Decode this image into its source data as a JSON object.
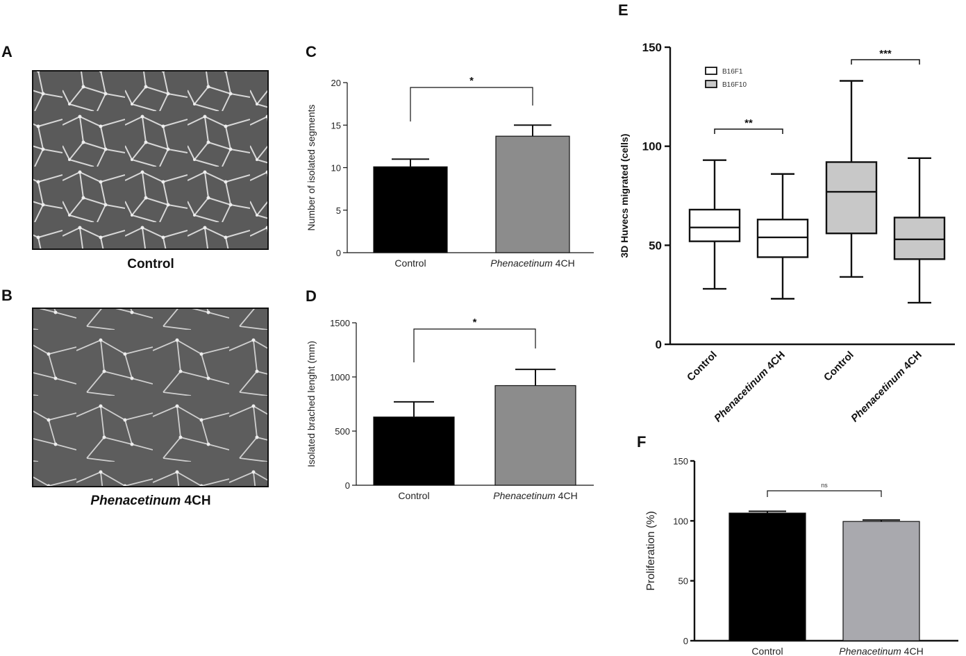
{
  "panels": {
    "A": {
      "letter": "A",
      "caption": "Control"
    },
    "B": {
      "letter": "B",
      "caption_italic": "Phenacetinum",
      "caption_rest": " 4CH"
    }
  },
  "colors": {
    "control": "#000000",
    "treat_c": "#8c8c8c",
    "treat_f": "#a9a9ae",
    "box_b16f1": "#ffffff",
    "box_b16f10": "#c8c8c8"
  },
  "chart_data": [
    {
      "panel": "C",
      "type": "bar",
      "title": "",
      "ylabel": "Number of isolated segments",
      "ylim": [
        0,
        20
      ],
      "yticks": [
        0,
        5,
        10,
        15,
        20
      ],
      "categories": [
        {
          "italic": "",
          "rest": "Control"
        },
        {
          "italic": "Phenacetinum",
          "rest": " 4CH"
        }
      ],
      "values": [
        10.1,
        13.7
      ],
      "errors": [
        0.9,
        1.3
      ],
      "significance": "*"
    },
    {
      "panel": "D",
      "type": "bar",
      "title": "",
      "ylabel": "Isolated brached lenght (mm)",
      "ylim": [
        0,
        1500
      ],
      "yticks": [
        0,
        500,
        1000,
        1500
      ],
      "categories": [
        {
          "italic": "",
          "rest": "Control"
        },
        {
          "italic": "Phenacetinum",
          "rest": " 4CH"
        }
      ],
      "values": [
        630,
        920
      ],
      "errors": [
        140,
        150
      ],
      "significance": "*"
    },
    {
      "panel": "E",
      "type": "box",
      "title": "",
      "ylabel": "3D Huvecs migrated  (cells)",
      "ylim": [
        0,
        150
      ],
      "yticks": [
        0,
        50,
        100,
        150
      ],
      "legend": [
        "B16F1",
        "B16F10"
      ],
      "legend_position": "top-left",
      "categories": [
        {
          "italic": "",
          "rest": "Control"
        },
        {
          "italic": "Phenacetinum",
          "rest": " 4CH"
        },
        {
          "italic": "",
          "rest": "Control"
        },
        {
          "italic": "Phenacetinum",
          "rest": " 4CH"
        }
      ],
      "boxes": [
        {
          "series": "B16F1",
          "min": 28,
          "q1": 52,
          "median": 59,
          "q3": 68,
          "max": 93
        },
        {
          "series": "B16F1",
          "min": 23,
          "q1": 44,
          "median": 54,
          "q3": 63,
          "max": 86
        },
        {
          "series": "B16F10",
          "min": 34,
          "q1": 56,
          "median": 77,
          "q3": 92,
          "max": 133
        },
        {
          "series": "B16F10",
          "min": 21,
          "q1": 43,
          "median": 53,
          "q3": 64,
          "max": 94
        }
      ],
      "comparisons": [
        {
          "between": [
            0,
            1
          ],
          "label": "**"
        },
        {
          "between": [
            2,
            3
          ],
          "label": "***"
        }
      ]
    },
    {
      "panel": "F",
      "type": "bar",
      "title": "",
      "ylabel": "Proliferation (%)",
      "ylim": [
        0,
        150
      ],
      "yticks": [
        0,
        50,
        100,
        150
      ],
      "categories": [
        {
          "italic": "",
          "rest": "Control"
        },
        {
          "italic": "Phenacetinum",
          "rest": " 4CH"
        }
      ],
      "values": [
        106.5,
        99.5
      ],
      "errors": [
        1.5,
        1.2
      ],
      "significance": "ns"
    }
  ]
}
